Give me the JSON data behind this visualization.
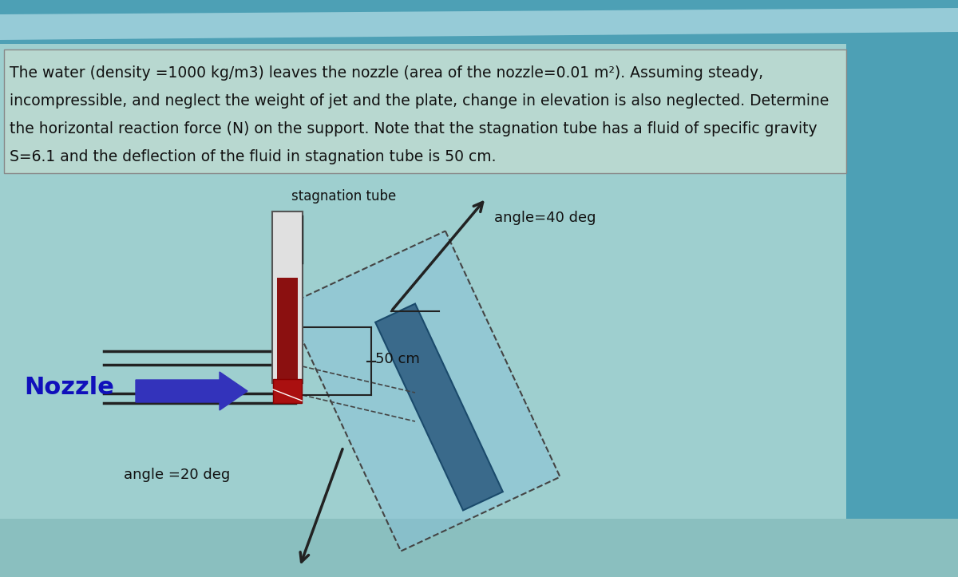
{
  "bg_color": "#9ecfcf",
  "bg_top_color": "#5aafbf",
  "text_bg_color": "#b5d8d0",
  "problem_text_line1": "The water (density =1000 kg/m3) leaves the nozzle (area of the nozzle=0.01 m²). Assuming steady,",
  "problem_text_line2": "incompressible, and neglect the weight of jet and the plate, change in elevation is also neglected. Determine",
  "problem_text_line3": "the horizontal reaction force (N) on the support. Note that the stagnation tube has a fluid of specific gravity",
  "problem_text_line4": "S=6.1 and the deflection of the fluid in stagnation tube is 50 cm.",
  "label_stagnation": "stagnation tube",
  "label_nozzle": "Nozzle",
  "label_50cm": "50 cm",
  "label_angle40": "angle=40 deg",
  "label_angle20": "angle =20 deg",
  "nozzle_arrow_color": "#3333bb",
  "stagnation_fluid_color": "#8b1010",
  "plate_dark_color": "#3a6a8b",
  "plate_light_color": "#87c0d8",
  "text_color": "#111111",
  "nozzle_text_color": "#1010bb",
  "line_color": "#222222",
  "dashed_color": "#444444"
}
